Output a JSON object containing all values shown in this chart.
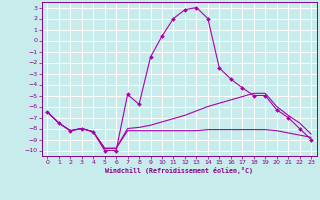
{
  "title": "",
  "xlabel": "Windchill (Refroidissement éolien,°C)",
  "xlim": [
    -0.5,
    23.5
  ],
  "ylim": [
    -10.5,
    3.5
  ],
  "xticks": [
    0,
    1,
    2,
    3,
    4,
    5,
    6,
    7,
    8,
    9,
    10,
    11,
    12,
    13,
    14,
    15,
    16,
    17,
    18,
    19,
    20,
    21,
    22,
    23
  ],
  "yticks": [
    3,
    2,
    1,
    0,
    -1,
    -2,
    -3,
    -4,
    -5,
    -6,
    -7,
    -8,
    -9,
    -10
  ],
  "background_color": "#c8ecec",
  "grid_color": "#ffffff",
  "line_color": "#aa00aa",
  "line1_x": [
    0,
    1,
    2,
    3,
    4,
    5,
    6,
    7,
    8,
    9,
    10,
    11,
    12,
    13,
    14,
    15,
    16,
    17,
    18,
    19,
    20,
    21,
    22,
    23
  ],
  "line1_y": [
    -6.5,
    -7.5,
    -8.2,
    -8.0,
    -8.3,
    -10.0,
    -10.0,
    -4.9,
    -5.8,
    -1.5,
    0.4,
    2.0,
    2.8,
    3.0,
    2.0,
    -2.5,
    -3.5,
    -4.3,
    -5.0,
    -5.0,
    -6.3,
    -7.0,
    -8.0,
    -9.0
  ],
  "line2_x": [
    0,
    1,
    2,
    3,
    4,
    5,
    6,
    7,
    8,
    9,
    10,
    11,
    12,
    13,
    14,
    15,
    16,
    17,
    18,
    19,
    20,
    21,
    22,
    23
  ],
  "line2_y": [
    -6.5,
    -7.5,
    -8.2,
    -8.0,
    -8.3,
    -9.8,
    -9.8,
    -8.0,
    -7.9,
    -7.7,
    -7.4,
    -7.1,
    -6.8,
    -6.4,
    -6.0,
    -5.7,
    -5.4,
    -5.1,
    -4.8,
    -4.8,
    -6.0,
    -6.8,
    -7.5,
    -8.5
  ],
  "line3_x": [
    0,
    1,
    2,
    3,
    4,
    5,
    6,
    7,
    8,
    9,
    10,
    11,
    12,
    13,
    14,
    15,
    16,
    17,
    18,
    19,
    20,
    21,
    22,
    23
  ],
  "line3_y": [
    -6.5,
    -7.5,
    -8.2,
    -8.0,
    -8.3,
    -9.8,
    -9.8,
    -8.2,
    -8.2,
    -8.2,
    -8.2,
    -8.2,
    -8.2,
    -8.2,
    -8.1,
    -8.1,
    -8.1,
    -8.1,
    -8.1,
    -8.1,
    -8.2,
    -8.4,
    -8.6,
    -8.8
  ]
}
